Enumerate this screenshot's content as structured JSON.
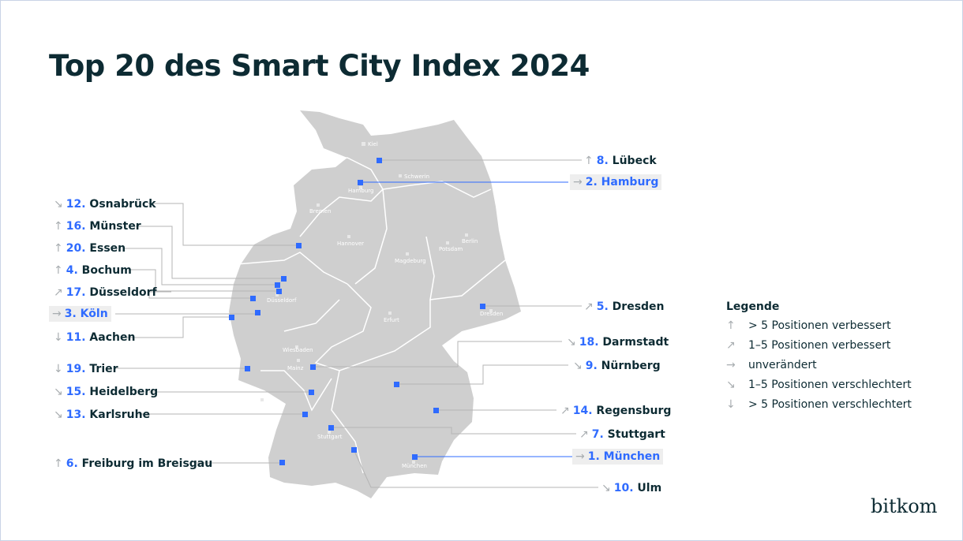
{
  "title": "Top 20 des Smart City Index 2024",
  "colors": {
    "accent": "#2f6bff",
    "map": "#cfcfcf",
    "text": "#0d2b33"
  },
  "trend_symbols": {
    "up_strong": "↑",
    "up": "↗",
    "same": "→",
    "down": "↘",
    "down_strong": "↓"
  },
  "map_labels": [
    "Kiel",
    "Schwerin",
    "Hamburg",
    "Bremen",
    "Hannover",
    "Magdeburg",
    "Berlin",
    "Potsdam",
    "Düsseldorf",
    "Erfurt",
    "Dresden",
    "Wiesbaden",
    "Mainz",
    "Saarbrücken",
    "Stuttgart",
    "München"
  ],
  "cities": [
    {
      "rank": "8.",
      "name": "Lübeck",
      "trend": "↑"
    },
    {
      "rank": "2.",
      "name": "Hamburg",
      "trend": "→"
    },
    {
      "rank": "12.",
      "name": "Osnabrück",
      "trend": "↘"
    },
    {
      "rank": "16.",
      "name": "Münster",
      "trend": "↑"
    },
    {
      "rank": "20.",
      "name": "Essen",
      "trend": "↑"
    },
    {
      "rank": "4.",
      "name": "Bochum",
      "trend": "↑"
    },
    {
      "rank": "17.",
      "name": "Düsseldorf",
      "trend": "↗"
    },
    {
      "rank": "3.",
      "name": "Köln",
      "trend": "→"
    },
    {
      "rank": "11.",
      "name": "Aachen",
      "trend": "↓"
    },
    {
      "rank": "5.",
      "name": "Dresden",
      "trend": "↗"
    },
    {
      "rank": "18.",
      "name": "Darmstadt",
      "trend": "↘"
    },
    {
      "rank": "9.",
      "name": "Nürnberg",
      "trend": "↘"
    },
    {
      "rank": "19.",
      "name": "Trier",
      "trend": "↓"
    },
    {
      "rank": "15.",
      "name": "Heidelberg",
      "trend": "↘"
    },
    {
      "rank": "13.",
      "name": "Karlsruhe",
      "trend": "↘"
    },
    {
      "rank": "14.",
      "name": "Regensburg",
      "trend": "↗"
    },
    {
      "rank": "7.",
      "name": "Stuttgart",
      "trend": "↗"
    },
    {
      "rank": "1.",
      "name": "München",
      "trend": "→"
    },
    {
      "rank": "6.",
      "name": "Freiburg im Breisgau",
      "trend": "↑"
    },
    {
      "rank": "10.",
      "name": "Ulm",
      "trend": "↘"
    }
  ],
  "legend": {
    "title": "Legende",
    "items": [
      {
        "symbol": "↑",
        "text": "> 5 Positionen verbessert"
      },
      {
        "symbol": "↗",
        "text": "1–5 Positionen verbessert"
      },
      {
        "symbol": "→",
        "text": "unverändert"
      },
      {
        "symbol": "↘",
        "text": "1–5 Positionen verschlechtert"
      },
      {
        "symbol": "↓",
        "text": "> 5 Positionen verschlechtert"
      }
    ]
  },
  "logo": "bitkom"
}
